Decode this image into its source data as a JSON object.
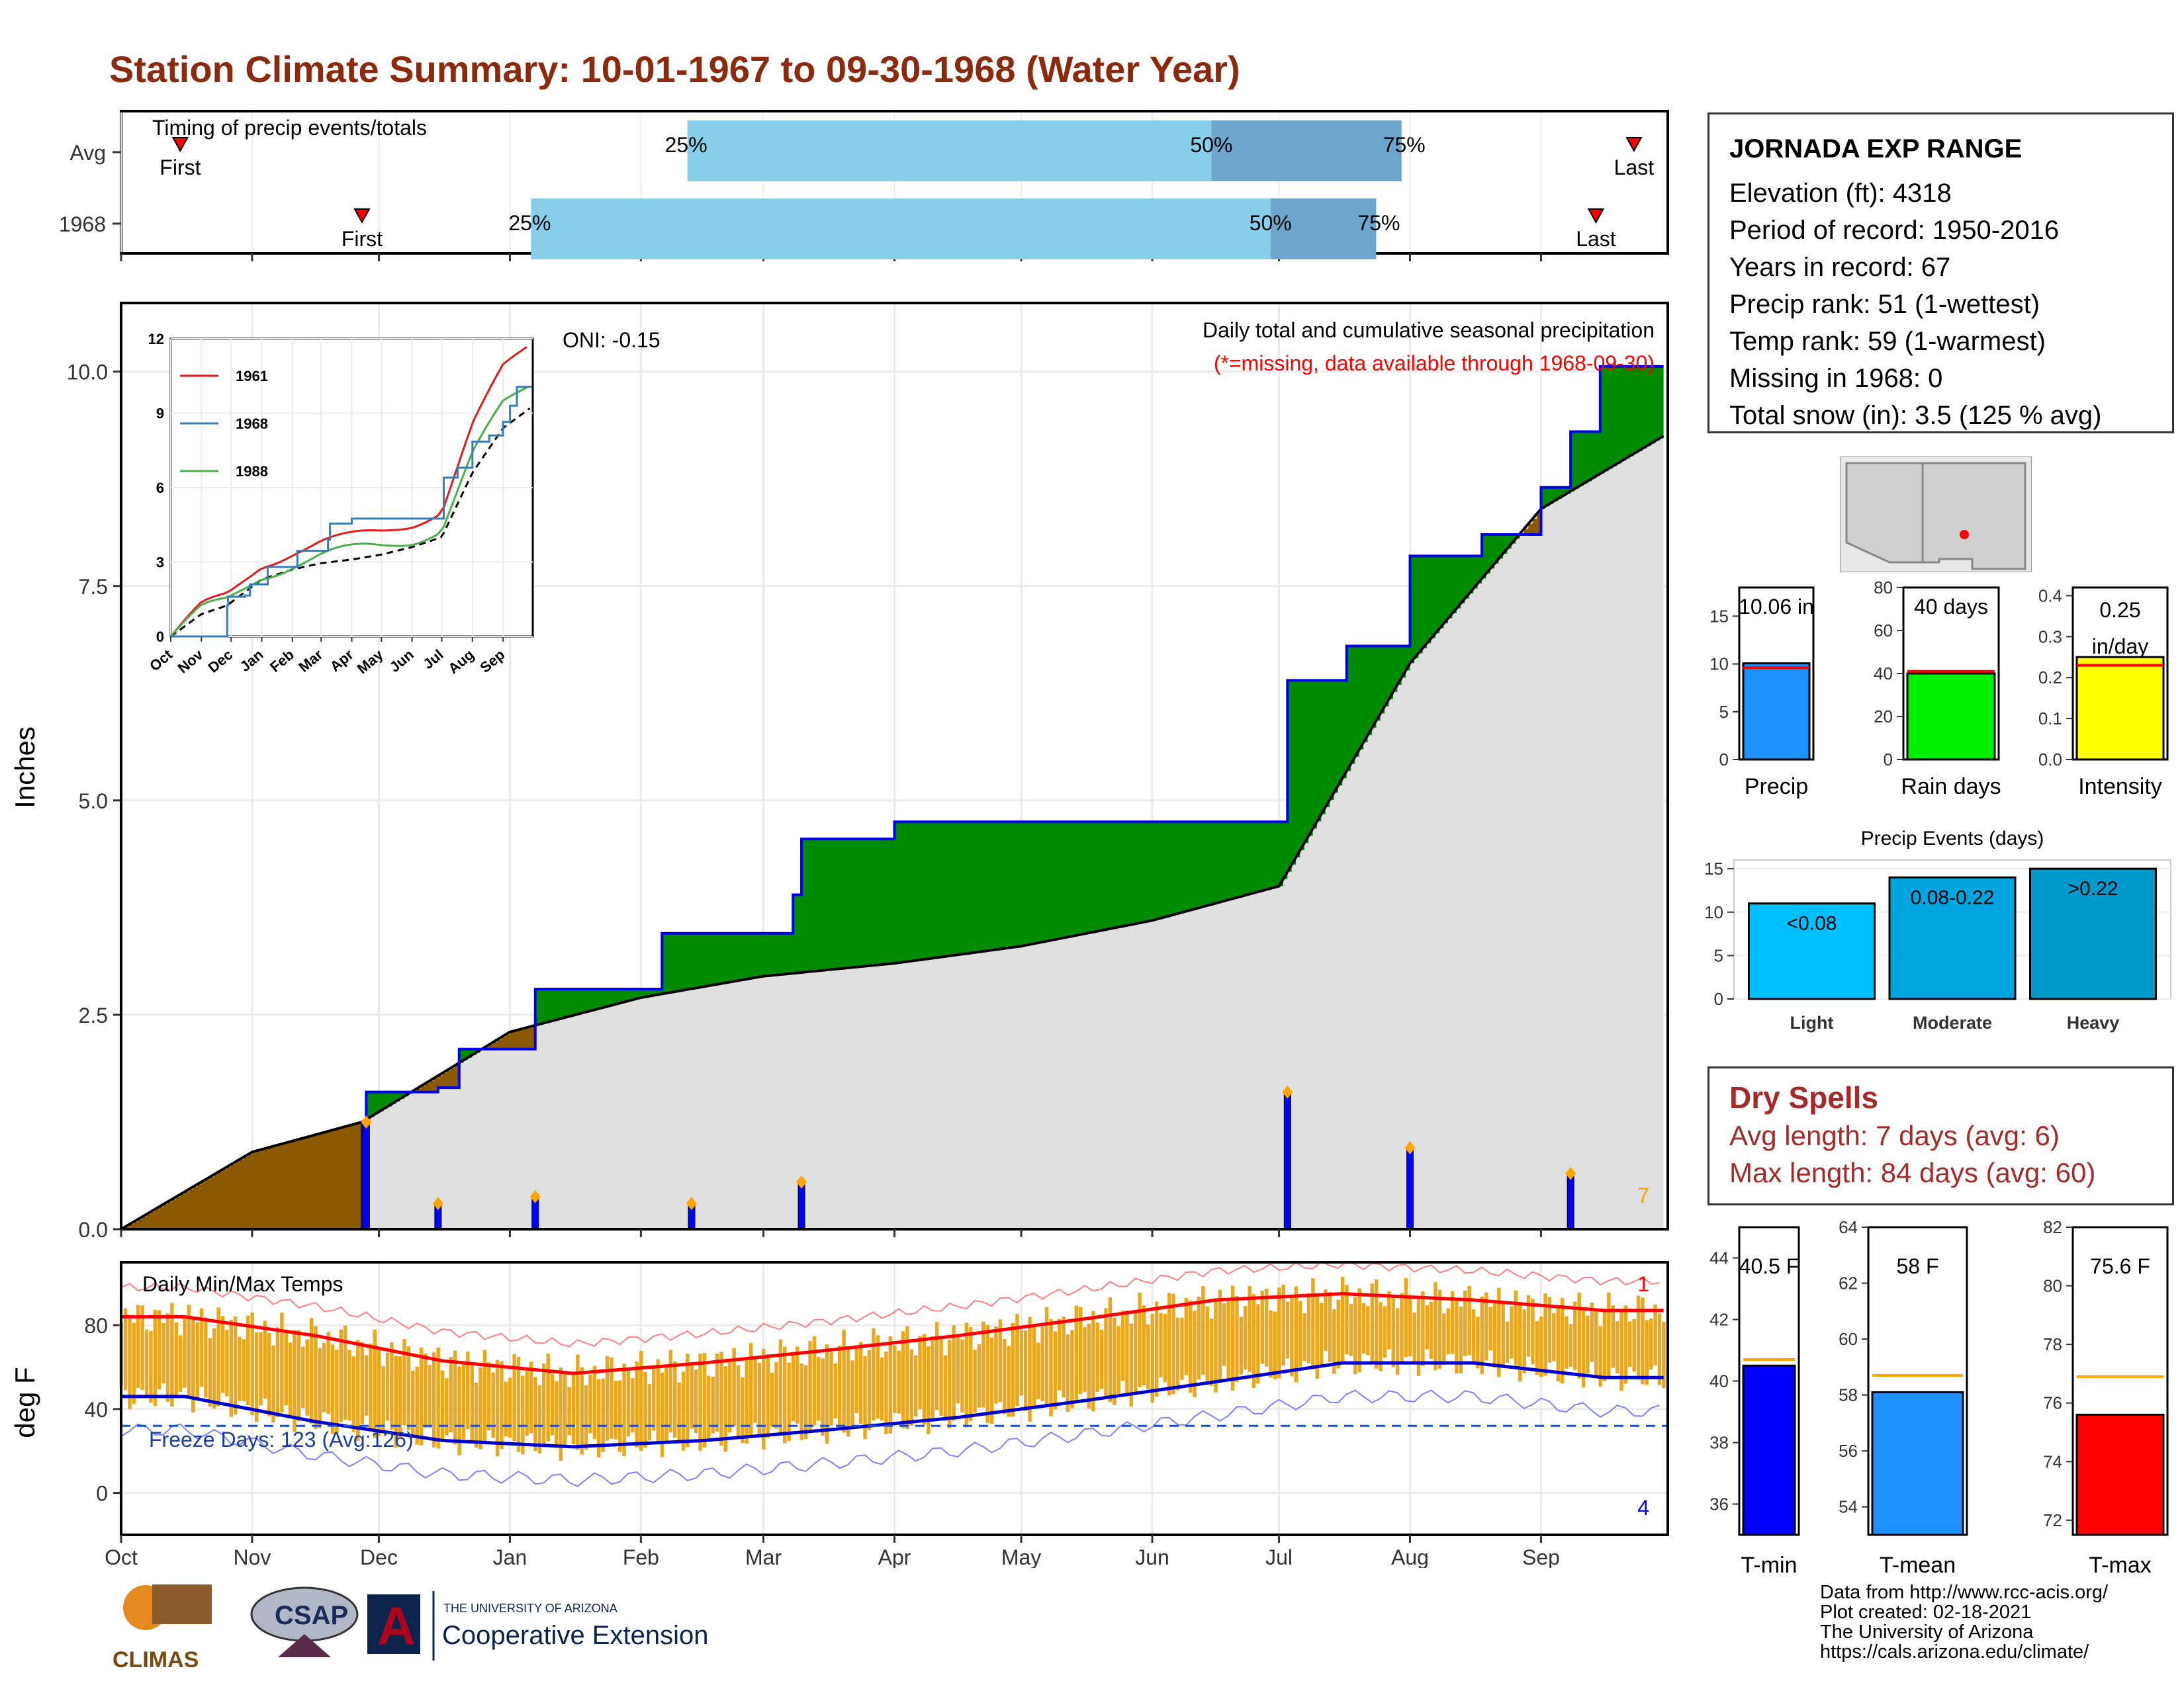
{
  "title": "Station Climate Summary: 10-01-1967 to 09-30-1968 (Water Year)",
  "timing": {
    "label": "Timing of precip events/totals",
    "rows": [
      {
        "name": "Avg",
        "first_day": 14,
        "last_day": 358,
        "p25": 134,
        "p50": 258,
        "p75": 303
      },
      {
        "name": "1968",
        "first_day": 57,
        "last_day": 349,
        "p25": 97,
        "p50": 272,
        "p75": 297
      }
    ],
    "pct_labels": [
      "25%",
      "50%",
      "75%"
    ],
    "first_label": "First",
    "last_label": "Last"
  },
  "station": {
    "name": "JORNADA EXP RANGE",
    "rows": [
      "Elevation (ft): 4318",
      "Period of record: 1950-2016",
      "Years in record: 67",
      "Precip rank: 51 (1-wettest)",
      "Temp rank: 59 (1-warmest)",
      "Missing in 1968: 0",
      "Total snow (in): 3.5 (125 % avg)"
    ]
  },
  "main_chart": {
    "ylabel": "Inches",
    "y_ticks": [
      "0.0",
      "2.5",
      "5.0",
      "7.5",
      "10.0"
    ],
    "note1": "Daily total and cumulative seasonal precipitation",
    "note2": "(*=missing, data available through 1968-09-30)",
    "oni": "ONI: -0.15",
    "corner_count": "7"
  },
  "inset": {
    "y_ticks": [
      "0",
      "3",
      "6",
      "9",
      "12"
    ],
    "x_ticks": [
      "Oct",
      "Nov",
      "Dec",
      "Jan",
      "Feb",
      "Mar",
      "Apr",
      "May",
      "Jun",
      "Jul",
      "Aug",
      "Sep"
    ],
    "legend": [
      {
        "name": "1961",
        "color": "#E41A1C"
      },
      {
        "name": "1968",
        "color": "#377EB8"
      },
      {
        "name": "1988",
        "color": "#4DAF4A"
      }
    ]
  },
  "temp_chart": {
    "ylabel": "deg F",
    "label": "Daily Min/Max Temps",
    "freeze": "Freeze Days: 123 (Avg:126)",
    "y_ticks": [
      "0",
      "40",
      "80"
    ],
    "count_top": "1",
    "count_bottom": "4"
  },
  "x_months": [
    "Oct",
    "Nov",
    "Dec",
    "Jan",
    "Feb",
    "Mar",
    "Apr",
    "May",
    "Jun",
    "Jul",
    "Aug",
    "Sep"
  ],
  "bars_small": [
    {
      "label": "Precip",
      "value_label": "10.06 in",
      "value": 10.06,
      "avg": 9.6,
      "max": 18,
      "ticks": [
        "0",
        "5",
        "10",
        "15"
      ],
      "color": "#1E90FF"
    },
    {
      "label": "Rain days",
      "value_label": "40 days",
      "value": 40,
      "avg": 41,
      "max": 80,
      "ticks": [
        "0",
        "20",
        "40",
        "60",
        "80"
      ],
      "color": "#00EE00"
    },
    {
      "label": "Intensity",
      "value_label": "0.25 in/day",
      "value_line1": "0.25",
      "value_line2": "in/day",
      "value": 0.25,
      "avg": 0.23,
      "max": 0.42,
      "ticks": [
        "0.0",
        "0.1",
        "0.2",
        "0.3",
        "0.4"
      ],
      "color": "#FFFF00"
    }
  ],
  "precip_events": {
    "title": "Precip Events (days)",
    "ticks": [
      "0",
      "5",
      "10",
      "15"
    ],
    "bars": [
      {
        "label": "Light",
        "range": "<0.08",
        "value": 11,
        "color": "#00BFFF"
      },
      {
        "label": "Moderate",
        "range": "0.08-0.22",
        "value": 14,
        "color": "#00A5E0"
      },
      {
        "label": "Heavy",
        "range": ">0.22",
        "value": 15,
        "color": "#0099CC"
      }
    ]
  },
  "dry_spells": {
    "title": "Dry Spells",
    "avg_length": "Avg length: 7 days (avg: 6)",
    "max_length": "Max length: 84 days (avg: 60)"
  },
  "temp_bars": [
    {
      "label": "T-min",
      "value_label": "40.5 F",
      "value": 40.5,
      "avg": 40.7,
      "min": 35,
      "max": 45,
      "ticks": [
        "36",
        "38",
        "40",
        "42",
        "44"
      ],
      "color": "#0000FF"
    },
    {
      "label": "T-mean",
      "value_label": "58 F",
      "value": 58.1,
      "avg": 58.7,
      "min": 53,
      "max": 64,
      "ticks": [
        "54",
        "56",
        "58",
        "60",
        "62",
        "64"
      ],
      "color": "#1E90FF"
    },
    {
      "label": "T-max",
      "value_label": "75.6 F",
      "value": 75.6,
      "avg": 76.9,
      "min": 71.5,
      "max": 82,
      "ticks": [
        "72",
        "74",
        "76",
        "78",
        "80",
        "82"
      ],
      "color": "#FF0000"
    }
  ],
  "footer": [
    "Data from http://www.rcc-acis.org/",
    "Plot created: 02-18-2021",
    "The University of Arizona",
    "https://cals.arizona.edu/climate/"
  ],
  "logos": {
    "climas": "CLIMAS",
    "csap": "CSAP",
    "ua_small": "THE UNIVERSITY OF ARIZONA",
    "ua_big": "Cooperative Extension"
  },
  "chart_data": [
    {
      "type": "area",
      "title": "Daily total and cumulative seasonal precipitation",
      "ylabel": "Inches",
      "ylim": [
        0,
        10.8
      ],
      "series": [
        {
          "name": "1968",
          "x": [
            "1967-10-01",
            "1967-11-27",
            "1967-11-28",
            "1967-12-15",
            "1967-12-20",
            "1968-01-07",
            "1968-01-13",
            "1968-02-06",
            "1968-02-13",
            "1968-03-08",
            "1968-03-10",
            "1968-04-01",
            "1968-07-03",
            "1968-07-17",
            "1968-08-01",
            "1968-08-18",
            "1968-09-01",
            "1968-09-08",
            "1968-09-15",
            "1968-09-30"
          ],
          "values": [
            0,
            1.25,
            1.6,
            1.65,
            2.1,
            2.8,
            2.8,
            3.45,
            3.45,
            3.9,
            4.55,
            4.75,
            6.4,
            6.8,
            7.85,
            8.1,
            8.65,
            9.3,
            10.06,
            10.06
          ]
        },
        {
          "name": "Avg",
          "x": [
            "1967-10-01",
            "1967-11-01",
            "1967-11-27",
            "1968-01-01",
            "1968-02-01",
            "1968-03-01",
            "1968-04-01",
            "1968-05-01",
            "1968-06-01",
            "1968-07-01",
            "1968-08-01",
            "1968-09-01",
            "1968-09-30"
          ],
          "values": [
            0,
            0.9,
            1.25,
            2.3,
            2.7,
            2.95,
            3.1,
            3.3,
            3.6,
            4.0,
            6.6,
            8.4,
            9.25
          ]
        }
      ],
      "daily_precip": [
        {
          "date": "1967-11-28",
          "value": 1.25
        },
        {
          "date": "1967-12-15",
          "value": 0.3
        },
        {
          "date": "1968-01-07",
          "value": 0.38
        },
        {
          "date": "1968-02-13",
          "value": 0.3
        },
        {
          "date": "1968-03-10",
          "value": 0.55
        },
        {
          "date": "1968-07-03",
          "value": 1.6
        },
        {
          "date": "1968-08-01",
          "value": 0.95
        },
        {
          "date": "1968-09-08",
          "value": 0.65
        }
      ]
    },
    {
      "type": "line",
      "title": "Daily Min/Max Temps",
      "ylabel": "deg F",
      "ylim": [
        -20,
        110
      ],
      "x": [
        "Oct",
        "Nov",
        "Dec",
        "Jan",
        "Feb",
        "Mar",
        "Apr",
        "May",
        "Jun",
        "Jul",
        "Aug",
        "Sep"
      ],
      "series": [
        {
          "name": "Avg max",
          "values": [
            84,
            75,
            63,
            57,
            62,
            68,
            75,
            83,
            92,
            95,
            92,
            87
          ]
        },
        {
          "name": "Avg min",
          "values": [
            46,
            34,
            25,
            22,
            25,
            30,
            36,
            44,
            53,
            62,
            62,
            55
          ]
        },
        {
          "name": "Freeze",
          "values": [
            32,
            32,
            32,
            32,
            32,
            32,
            32,
            32,
            32,
            32,
            32,
            32
          ]
        }
      ]
    }
  ]
}
